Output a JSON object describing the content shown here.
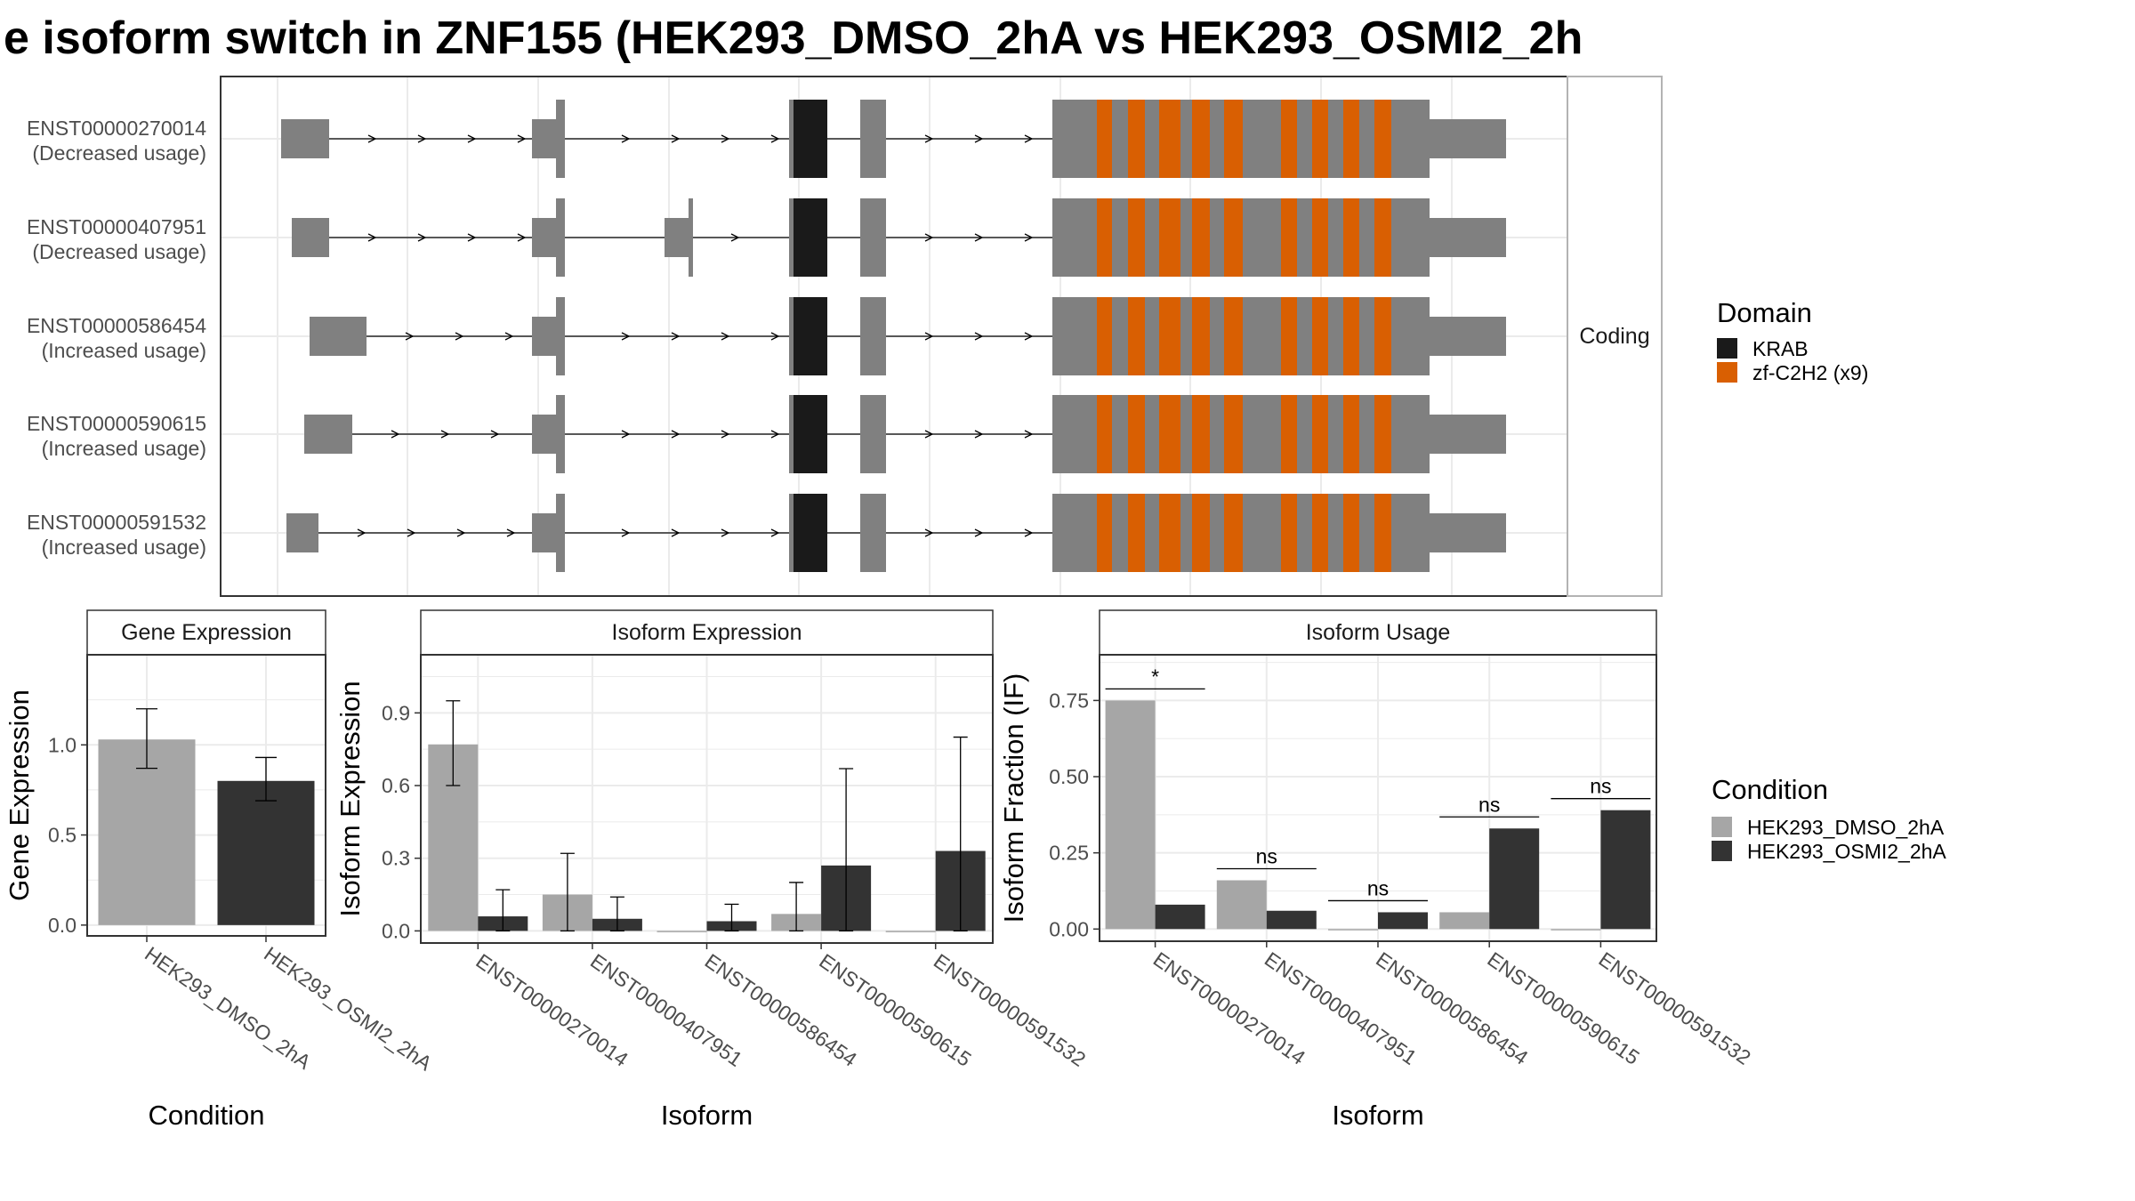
{
  "title": "e isoform switch in ZNF155 (HEK293_DMSO_2hA vs HEK293_OSMI2_2h",
  "colors": {
    "exon": "#808080",
    "krab": "#1a1a1a",
    "znf": "#d95f02",
    "dmso": "#a6a6a6",
    "osmi": "#333333",
    "grid": "#ebebeb",
    "panel_border": "#333333",
    "strip_bg": "#ffffff"
  },
  "structure": {
    "facet_label": "Coding",
    "transcripts": [
      {
        "id": "ENST00000270014",
        "usage": "(Decreased usage)"
      },
      {
        "id": "ENST00000407951",
        "usage": "(Decreased usage)"
      },
      {
        "id": "ENST00000586454",
        "usage": "(Increased usage)"
      },
      {
        "id": "ENST00000590615",
        "usage": "(Increased usage)"
      },
      {
        "id": "ENST00000591532",
        "usage": "(Increased usage)"
      }
    ]
  },
  "domain_legend": {
    "title": "Domain",
    "items": [
      {
        "label": "KRAB",
        "color_key": "krab"
      },
      {
        "label": "zf-C2H2 (x9)",
        "color_key": "znf"
      }
    ]
  },
  "condition_legend": {
    "title": "Condition",
    "items": [
      {
        "label": "HEK293_DMSO_2hA",
        "color_key": "dmso"
      },
      {
        "label": "HEK293_OSMI2_2hA",
        "color_key": "osmi"
      }
    ]
  },
  "chart_data": [
    {
      "type": "bar",
      "strip": "Gene Expression",
      "xlabel": "Condition",
      "ylabel": "Gene Expression",
      "categories": [
        "HEK293_DMSO_2hA",
        "HEK293_OSMI2_2hA"
      ],
      "values": [
        1.03,
        0.8
      ],
      "error_low": [
        0.87,
        0.69
      ],
      "error_high": [
        1.2,
        0.93
      ],
      "yticks": [
        "0.0",
        "0.5",
        "1.0"
      ],
      "ylim": [
        -0.06,
        1.5
      ]
    },
    {
      "type": "bar",
      "strip": "Isoform Expression",
      "xlabel": "Isoform",
      "ylabel": "Isoform Expression",
      "categories": [
        "ENST00000270014",
        "ENST00000407951",
        "ENST00000586454",
        "ENST00000590615",
        "ENST00000591532"
      ],
      "series": [
        {
          "name": "HEK293_DMSO_2hA",
          "values": [
            0.77,
            0.15,
            0.0,
            0.07,
            0.0
          ],
          "error_low": [
            0.6,
            0.0,
            0.0,
            0.0,
            0.0
          ],
          "error_high": [
            0.95,
            0.32,
            0.0,
            0.2,
            0.0
          ]
        },
        {
          "name": "HEK293_OSMI2_2hA",
          "values": [
            0.06,
            0.05,
            0.04,
            0.27,
            0.33
          ],
          "error_low": [
            0.0,
            0.0,
            0.0,
            0.0,
            0.0
          ],
          "error_high": [
            0.17,
            0.14,
            0.11,
            0.67,
            0.8
          ]
        }
      ],
      "yticks": [
        "0.0",
        "0.3",
        "0.6",
        "0.9"
      ],
      "ylim": [
        -0.05,
        1.14
      ]
    },
    {
      "type": "bar",
      "strip": "Isoform Usage",
      "xlabel": "Isoform",
      "ylabel": "Isoform Fraction (IF)",
      "categories": [
        "ENST00000270014",
        "ENST00000407951",
        "ENST00000586454",
        "ENST00000590615",
        "ENST00000591532"
      ],
      "series": [
        {
          "name": "HEK293_DMSO_2hA",
          "values": [
            0.75,
            0.16,
            0.0,
            0.055,
            0.0
          ]
        },
        {
          "name": "HEK293_OSMI2_2hA",
          "values": [
            0.08,
            0.06,
            0.055,
            0.33,
            0.39
          ]
        }
      ],
      "significance": [
        "*",
        "ns",
        "ns",
        "ns",
        "ns"
      ],
      "yticks": [
        "0.00",
        "0.25",
        "0.50",
        "0.75"
      ],
      "ylim": [
        -0.04,
        0.9
      ]
    }
  ]
}
